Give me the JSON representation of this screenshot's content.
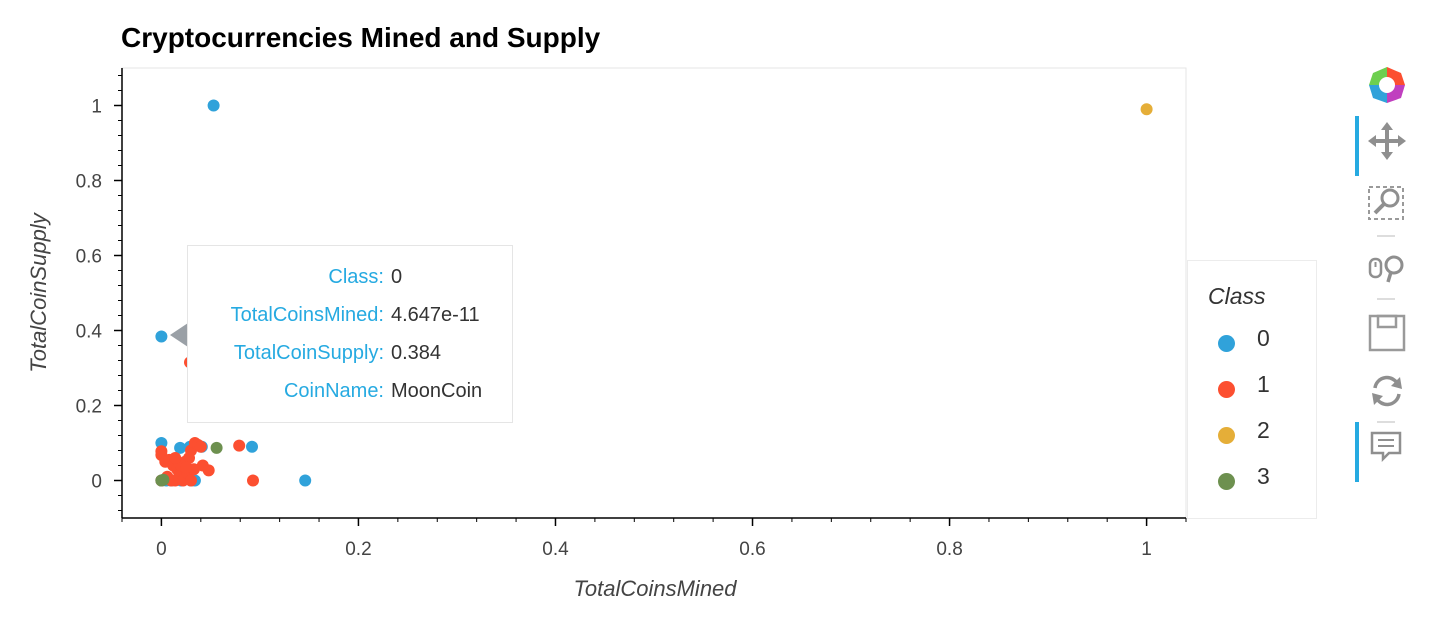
{
  "chart_data": {
    "type": "scatter",
    "title": "Cryptocurrencies Mined and Supply",
    "xlabel": "TotalCoinsMined",
    "ylabel": "TotalCoinSupply",
    "xlim": [
      -0.04,
      1.04
    ],
    "ylim": [
      -0.1,
      1.1
    ],
    "x_ticks": [
      0,
      0.2,
      0.4,
      0.6,
      0.8,
      1
    ],
    "x_tick_labels": [
      "0",
      "0.2",
      "0.4",
      "0.6",
      "0.8",
      "1"
    ],
    "y_ticks": [
      0,
      0.2,
      0.4,
      0.6,
      0.8,
      1
    ],
    "y_tick_labels": [
      "0",
      "0.2",
      "0.4",
      "0.6",
      "0.8",
      "1"
    ],
    "grid": false,
    "legend_position": "right",
    "series": [
      {
        "name": "0",
        "color": "#30a2da",
        "points": [
          [
            0.053,
            1.0
          ],
          [
            0.0,
            0.384
          ],
          [
            0.0,
            0.1
          ],
          [
            0.019,
            0.087
          ],
          [
            0.029,
            0.09
          ],
          [
            0.041,
            0.09
          ],
          [
            0.092,
            0.09
          ],
          [
            0.146,
            0.0
          ],
          [
            0.0,
            0.0
          ],
          [
            0.005,
            0.0
          ],
          [
            0.01,
            0.0
          ],
          [
            0.02,
            0.0
          ],
          [
            0.03,
            0.0
          ],
          [
            0.034,
            0.0
          ],
          [
            0.042,
            0.185
          ],
          [
            0.1,
            0.185
          ],
          [
            0.165,
            0.197
          ],
          [
            0.186,
            0.185
          ]
        ]
      },
      {
        "name": "1",
        "color": "#fc4f30",
        "points": [
          [
            0.029,
            0.315
          ],
          [
            0.0,
            0.078
          ],
          [
            0.0,
            0.068
          ],
          [
            0.004,
            0.05
          ],
          [
            0.008,
            0.055
          ],
          [
            0.012,
            0.04
          ],
          [
            0.016,
            0.03
          ],
          [
            0.02,
            0.02
          ],
          [
            0.024,
            0.05
          ],
          [
            0.028,
            0.06
          ],
          [
            0.03,
            0.08
          ],
          [
            0.034,
            0.1
          ],
          [
            0.037,
            0.095
          ],
          [
            0.04,
            0.09
          ],
          [
            0.042,
            0.04
          ],
          [
            0.048,
            0.027
          ],
          [
            0.079,
            0.093
          ],
          [
            0.093,
            0.0
          ],
          [
            0.0,
            0.0
          ],
          [
            0.006,
            0.01
          ],
          [
            0.01,
            0.0
          ],
          [
            0.014,
            0.0
          ],
          [
            0.018,
            0.01
          ],
          [
            0.022,
            0.0
          ],
          [
            0.026,
            0.02
          ],
          [
            0.03,
            0.0
          ],
          [
            0.033,
            0.03
          ],
          [
            0.02,
            0.04
          ],
          [
            0.014,
            0.06
          ],
          [
            0.025,
            0.035
          ]
        ]
      },
      {
        "name": "2",
        "color": "#e5ae38",
        "points": [
          [
            1.0,
            0.99
          ]
        ]
      },
      {
        "name": "3",
        "color": "#6d904f",
        "points": [
          [
            0.056,
            0.087
          ],
          [
            0.0,
            0.0
          ],
          [
            0.002,
            0.002
          ]
        ]
      }
    ]
  },
  "tooltip": {
    "rows": [
      {
        "key": "Class:",
        "value": "0"
      },
      {
        "key": "TotalCoinsMined:",
        "value": "4.647e-11"
      },
      {
        "key": "TotalCoinSupply:",
        "value": "0.384"
      },
      {
        "key": "CoinName:",
        "value": "MoonCoin"
      }
    ]
  },
  "legend": {
    "title": "Class",
    "items": [
      {
        "label": "0",
        "color": "#30a2da"
      },
      {
        "label": "1",
        "color": "#fc4f30"
      },
      {
        "label": "2",
        "color": "#e5ae38"
      },
      {
        "label": "3",
        "color": "#6d904f"
      }
    ]
  },
  "toolbar": {
    "tools": [
      {
        "icon": "bokeh-logo-icon",
        "active": false
      },
      {
        "icon": "pan-icon",
        "active": true
      },
      {
        "icon": "box-zoom-icon",
        "active": false
      },
      {
        "icon": "wheel-zoom-icon",
        "active": false
      },
      {
        "icon": "save-icon",
        "active": false
      },
      {
        "icon": "reset-icon",
        "active": false
      },
      {
        "icon": "hover-icon",
        "active": true
      }
    ]
  }
}
